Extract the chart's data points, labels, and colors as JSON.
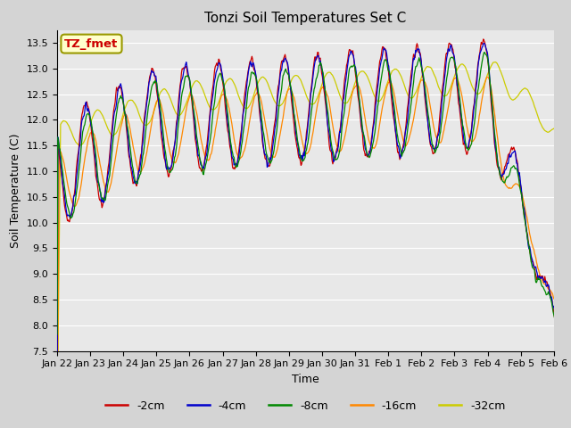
{
  "title": "Tonzi Soil Temperatures Set C",
  "xlabel": "Time",
  "ylabel": "Soil Temperature (C)",
  "ylim": [
    7.5,
    13.75
  ],
  "yticks": [
    7.5,
    8.0,
    8.5,
    9.0,
    9.5,
    10.0,
    10.5,
    11.0,
    11.5,
    12.0,
    12.5,
    13.0,
    13.5
  ],
  "xtick_labels": [
    "Jan 22",
    "Jan 23",
    "Jan 24",
    "Jan 25",
    "Jan 26",
    "Jan 27",
    "Jan 28",
    "Jan 29",
    "Jan 30",
    "Jan 31",
    "Feb 1",
    "Feb 2",
    "Feb 3",
    "Feb 4",
    "Feb 5",
    "Feb 6"
  ],
  "legend_entries": [
    "-2cm",
    "-4cm",
    "-8cm",
    "-16cm",
    "-32cm"
  ],
  "colors": [
    "#cc0000",
    "#0000cc",
    "#008800",
    "#ff8800",
    "#cccc00"
  ],
  "annotation_text": "TZ_fmet",
  "annotation_bg": "#ffffcc",
  "annotation_border": "#999900",
  "annotation_fg": "#cc0000",
  "plot_bg": "#e8e8e8",
  "fig_bg": "#d4d4d4"
}
